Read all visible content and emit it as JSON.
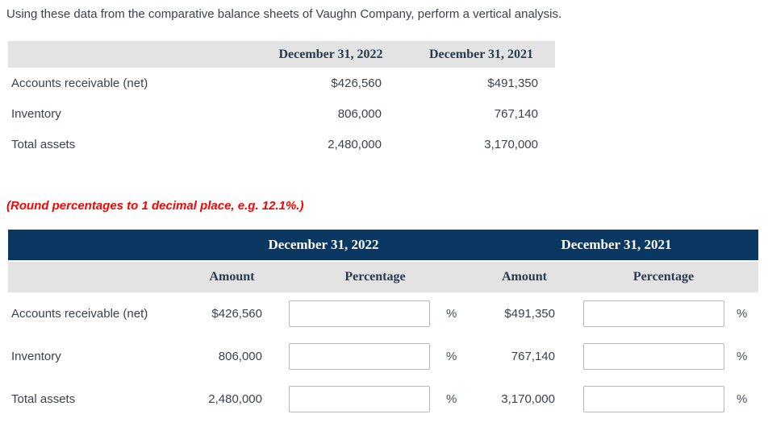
{
  "instruction": "Using these data from the comparative balance sheets of Vaughn Company, perform a vertical analysis.",
  "note": "(Round percentages to 1 decimal place, e.g. 12.1%.)",
  "percent_sign": "%",
  "colors": {
    "header_navy": "#0b3763",
    "header_gray": "#e3e3e3",
    "heading_text_navy": "#263c52",
    "body_text": "#39424e",
    "note_red": "#fe0000"
  },
  "source_table": {
    "columns": [
      "December 31, 2022",
      "December 31, 2021"
    ],
    "rows": [
      {
        "label": "Accounts receivable (net)",
        "v2022": "$426,560",
        "v2021": "$491,350"
      },
      {
        "label": "Inventory",
        "v2022": "806,000",
        "v2021": "767,140"
      },
      {
        "label": "Total assets",
        "v2022": "2,480,000",
        "v2021": "3,170,000"
      }
    ]
  },
  "analysis_table": {
    "group_headers": [
      "December 31, 2022",
      "December 31, 2021"
    ],
    "sub_headers": [
      "Amount",
      "Percentage",
      "Amount",
      "Percentage"
    ],
    "rows": [
      {
        "label": "Accounts receivable (net)",
        "amount_2022": "$426,560",
        "pct_2022": "",
        "amount_2021": "$491,350",
        "pct_2021": ""
      },
      {
        "label": "Inventory",
        "amount_2022": "806,000",
        "pct_2022": "",
        "amount_2021": "767,140",
        "pct_2021": ""
      },
      {
        "label": "Total assets",
        "amount_2022": "2,480,000",
        "pct_2022": "",
        "amount_2021": "3,170,000",
        "pct_2021": ""
      }
    ]
  }
}
